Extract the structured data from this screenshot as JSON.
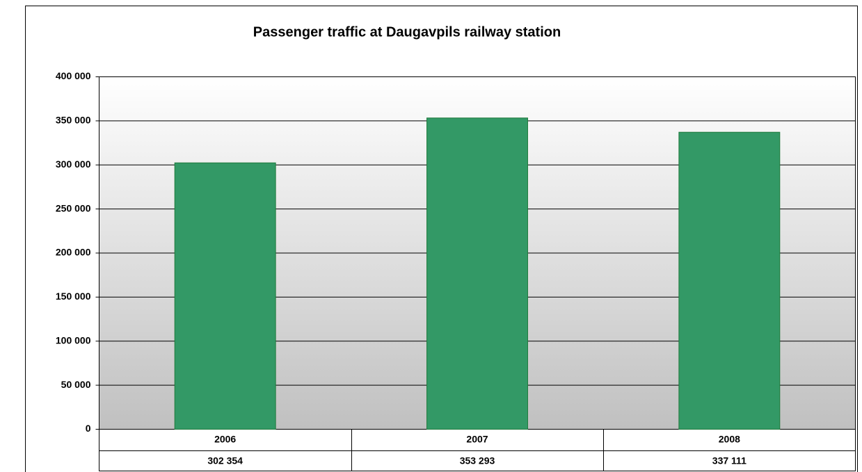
{
  "chart_data": {
    "type": "bar",
    "title": "Passenger traffic at Daugavpils railway station",
    "categories": [
      "2006",
      "2007",
      "2008"
    ],
    "values": [
      302354,
      353293,
      337111
    ],
    "value_labels": [
      "302 354",
      "353 293",
      "337 111"
    ],
    "color": "#339966",
    "ylim": [
      0,
      400000
    ],
    "yticks": [
      0,
      {
        "value": 50000,
        "label": "50 000"
      },
      {
        "value": 100000,
        "label": "100 000"
      },
      {
        "value": 150000,
        "label": "150 000"
      },
      {
        "value": 200000,
        "label": "200 000"
      },
      {
        "value": 250000,
        "label": "250 000"
      },
      {
        "value": 300000,
        "label": "300 000"
      },
      {
        "value": 350000,
        "label": "350 000"
      },
      {
        "value": 400000,
        "label": "400 000"
      }
    ],
    "grid": true
  }
}
